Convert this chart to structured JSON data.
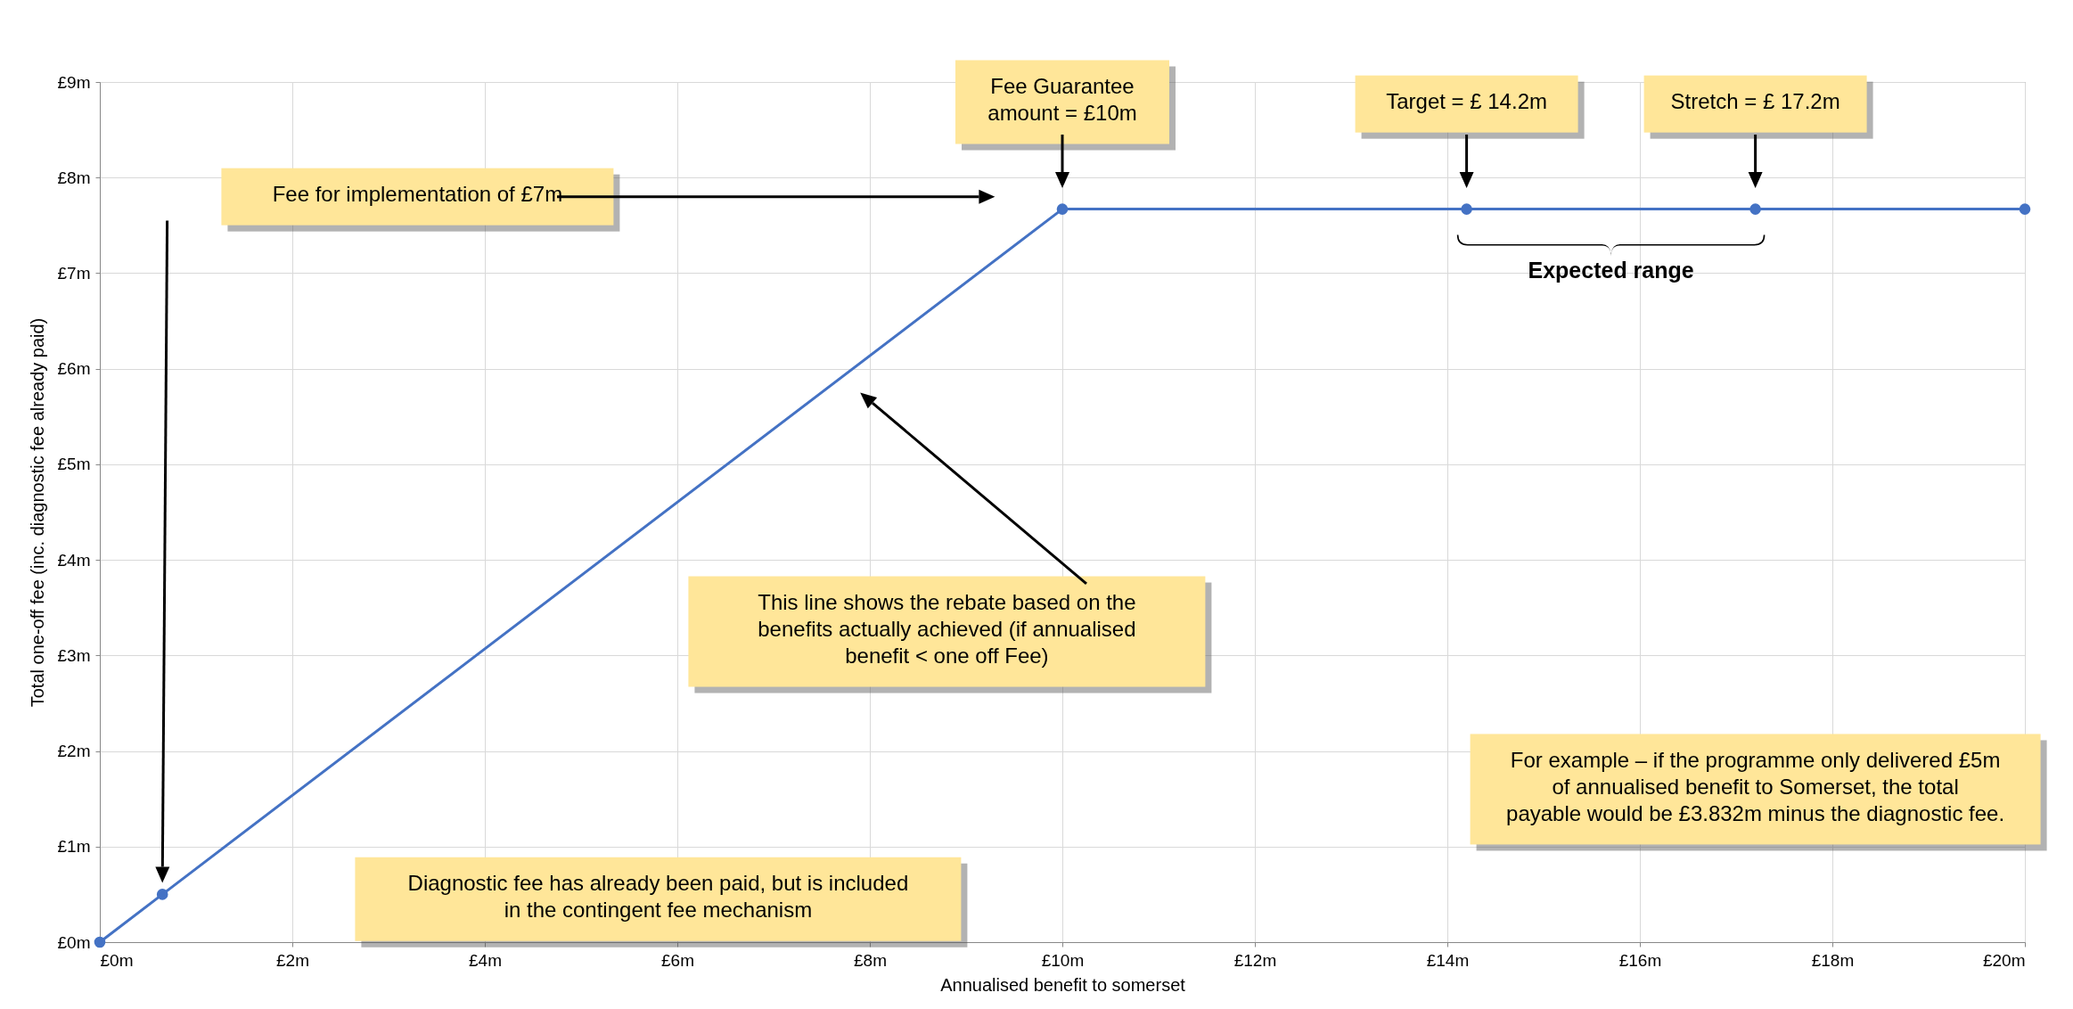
{
  "chart_data": {
    "type": "line",
    "xlabel": "Annualised benefit to somerset",
    "ylabel": "Total one-off fee (inc. diagnostic fee already paid)",
    "x": [
      0,
      0.65,
      10,
      14.2,
      17.2,
      20
    ],
    "series": [
      {
        "color": "#4472c4",
        "values": [
          0,
          0.5,
          7.67,
          7.67,
          7.67,
          7.67
        ]
      }
    ],
    "xlim": [
      0,
      20
    ],
    "ylim": [
      0,
      9
    ],
    "xticks": [
      {
        "value": 0,
        "label": "£0m"
      },
      {
        "value": 2,
        "label": "£2m"
      },
      {
        "value": 4,
        "label": "£4m"
      },
      {
        "value": 6,
        "label": "£6m"
      },
      {
        "value": 8,
        "label": "£8m"
      },
      {
        "value": 10,
        "label": "£10m"
      },
      {
        "value": 12,
        "label": "£12m"
      },
      {
        "value": 14,
        "label": "£14m"
      },
      {
        "value": 16,
        "label": "£16m"
      },
      {
        "value": 18,
        "label": "£18m"
      },
      {
        "value": 20,
        "label": "£20m"
      }
    ],
    "yticks": [
      {
        "value": 0,
        "label": "£0m"
      },
      {
        "value": 1,
        "label": "£1m"
      },
      {
        "value": 2,
        "label": "£2m"
      },
      {
        "value": 3,
        "label": "£3m"
      },
      {
        "value": 4,
        "label": "£4m"
      },
      {
        "value": 5,
        "label": "£5m"
      },
      {
        "value": 6,
        "label": "£6m"
      },
      {
        "value": 7,
        "label": "£7m"
      },
      {
        "value": 8,
        "label": "£8m"
      },
      {
        "value": 9,
        "label": "£9m"
      }
    ],
    "grid": true,
    "marker": "circle",
    "line_style": "solid",
    "annotations": [
      "Fee for implementation of £7m",
      "Fee Guarantee amount = £10m",
      "Target = £ 14.2m",
      "Stretch = £ 17.2m",
      "This line shows the rebate based on the benefits actually achieved (if annualised benefit < one off Fee)",
      "For example – if the programme only delivered £5m of annualised benefit to Somerset, the total payable would be £3.832m minus the diagnostic fee.",
      "Diagnostic fee has already been paid, but is included in the contingent fee mechanism",
      "Expected range"
    ]
  }
}
